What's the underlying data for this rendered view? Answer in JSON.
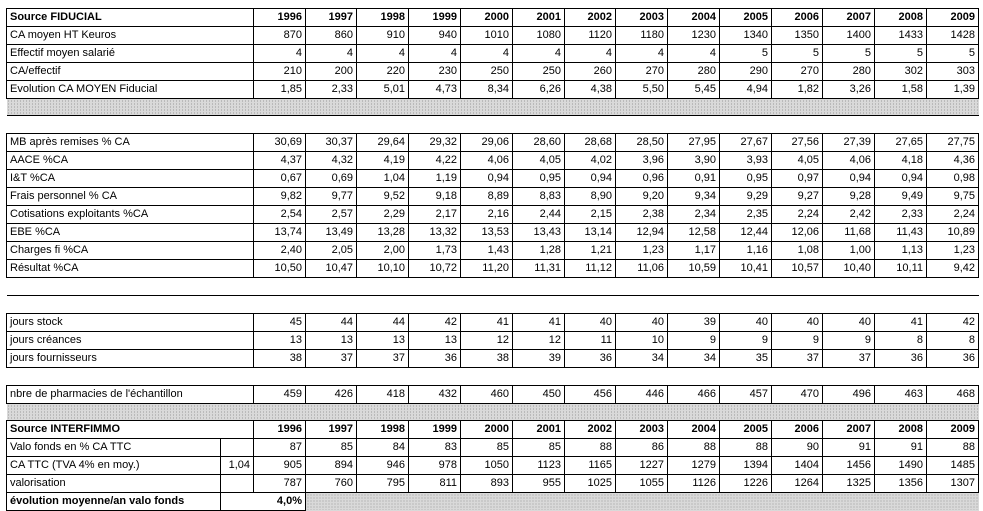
{
  "fiducial": {
    "title": "Source FIDUCIAL",
    "years": [
      "1996",
      "1997",
      "1998",
      "1999",
      "2000",
      "2001",
      "2002",
      "2003",
      "2004",
      "2005",
      "2006",
      "2007",
      "2008",
      "2009"
    ],
    "rows": [
      {
        "label": "CA moyen HT Keuros",
        "values": [
          "870",
          "860",
          "910",
          "940",
          "1010",
          "1080",
          "1120",
          "1180",
          "1230",
          "1340",
          "1350",
          "1400",
          "1433",
          "1428"
        ]
      },
      {
        "label": "Effectif moyen salarié",
        "values": [
          "4",
          "4",
          "4",
          "4",
          "4",
          "4",
          "4",
          "4",
          "4",
          "5",
          "5",
          "5",
          "5",
          "5"
        ]
      },
      {
        "label": "CA/effectif",
        "values": [
          "210",
          "200",
          "220",
          "230",
          "250",
          "250",
          "260",
          "270",
          "280",
          "290",
          "270",
          "280",
          "302",
          "303"
        ]
      },
      {
        "label": "Evolution CA MOYEN Fiducial",
        "values": [
          "1,85",
          "2,33",
          "5,01",
          "4,73",
          "8,34",
          "6,26",
          "4,38",
          "5,50",
          "5,45",
          "4,94",
          "1,82",
          "3,26",
          "1,58",
          "1,39"
        ]
      }
    ]
  },
  "ratios": {
    "rows": [
      {
        "label": "MB après remises % CA",
        "values": [
          "30,69",
          "30,37",
          "29,64",
          "29,32",
          "29,06",
          "28,60",
          "28,68",
          "28,50",
          "27,95",
          "27,67",
          "27,56",
          "27,39",
          "27,65",
          "27,75"
        ]
      },
      {
        "label": "AACE %CA",
        "values": [
          "4,37",
          "4,32",
          "4,19",
          "4,22",
          "4,06",
          "4,05",
          "4,02",
          "3,96",
          "3,90",
          "3,93",
          "4,05",
          "4,06",
          "4,18",
          "4,36"
        ]
      },
      {
        "label": "I&T %CA",
        "values": [
          "0,67",
          "0,69",
          "1,04",
          "1,19",
          "0,94",
          "0,95",
          "0,94",
          "0,96",
          "0,91",
          "0,95",
          "0,97",
          "0,94",
          "0,94",
          "0,98"
        ]
      },
      {
        "label": "Frais personnel % CA",
        "values": [
          "9,82",
          "9,77",
          "9,52",
          "9,18",
          "8,89",
          "8,83",
          "8,90",
          "9,20",
          "9,34",
          "9,29",
          "9,27",
          "9,28",
          "9,49",
          "9,75"
        ]
      },
      {
        "label": "Cotisations exploitants %CA",
        "values": [
          "2,54",
          "2,57",
          "2,29",
          "2,17",
          "2,16",
          "2,44",
          "2,15",
          "2,38",
          "2,34",
          "2,35",
          "2,24",
          "2,42",
          "2,33",
          "2,24"
        ]
      },
      {
        "label": "EBE %CA",
        "values": [
          "13,74",
          "13,49",
          "13,28",
          "13,32",
          "13,53",
          "13,43",
          "13,14",
          "12,94",
          "12,58",
          "12,44",
          "12,06",
          "11,68",
          "11,43",
          "10,89"
        ]
      },
      {
        "label": "Charges fi %CA",
        "values": [
          "2,40",
          "2,05",
          "2,00",
          "1,73",
          "1,43",
          "1,28",
          "1,21",
          "1,23",
          "1,17",
          "1,16",
          "1,08",
          "1,00",
          "1,13",
          "1,23"
        ]
      },
      {
        "label": "Résultat %CA",
        "values": [
          "10,50",
          "10,47",
          "10,10",
          "10,72",
          "11,20",
          "11,31",
          "11,12",
          "11,06",
          "10,59",
          "10,41",
          "10,57",
          "10,40",
          "10,11",
          "9,42"
        ]
      }
    ]
  },
  "jours": {
    "rows": [
      {
        "label": "jours stock",
        "values": [
          "45",
          "44",
          "44",
          "42",
          "41",
          "41",
          "40",
          "40",
          "39",
          "40",
          "40",
          "40",
          "41",
          "42"
        ]
      },
      {
        "label": "jours créances",
        "values": [
          "13",
          "13",
          "13",
          "13",
          "12",
          "12",
          "11",
          "10",
          "9",
          "9",
          "9",
          "9",
          "8",
          "8"
        ]
      },
      {
        "label": "jours fournisseurs",
        "values": [
          "38",
          "37",
          "37",
          "36",
          "38",
          "39",
          "36",
          "34",
          "34",
          "35",
          "37",
          "37",
          "36",
          "36"
        ]
      }
    ]
  },
  "echantillon": {
    "label": "nbre de pharmacies de l'échantillon",
    "values": [
      "459",
      "426",
      "418",
      "432",
      "460",
      "450",
      "456",
      "446",
      "466",
      "457",
      "470",
      "496",
      "463",
      "468"
    ]
  },
  "interfimmo": {
    "title": "Source INTERFIMMO",
    "years": [
      "1996",
      "1997",
      "1998",
      "1999",
      "2000",
      "2001",
      "2002",
      "2003",
      "2004",
      "2005",
      "2006",
      "2007",
      "2008",
      "2009"
    ],
    "rows": [
      {
        "label": "Valo fonds en % CA TTC",
        "extra": "",
        "values": [
          "87",
          "85",
          "84",
          "83",
          "85",
          "85",
          "88",
          "86",
          "88",
          "88",
          "90",
          "91",
          "91",
          "88"
        ]
      },
      {
        "label": "CA TTC (TVA 4% en moy.)",
        "extra": "1,04",
        "values": [
          "905",
          "894",
          "946",
          "978",
          "1050",
          "1123",
          "1165",
          "1227",
          "1279",
          "1394",
          "1404",
          "1456",
          "1490",
          "1485"
        ]
      },
      {
        "label": "valorisation",
        "extra": "",
        "values": [
          "787",
          "760",
          "795",
          "811",
          "893",
          "955",
          "1025",
          "1055",
          "1126",
          "1226",
          "1264",
          "1325",
          "1356",
          "1307"
        ]
      }
    ]
  },
  "summary": {
    "label": "évolution moyenne/an valo fonds",
    "value": "4,0%"
  }
}
